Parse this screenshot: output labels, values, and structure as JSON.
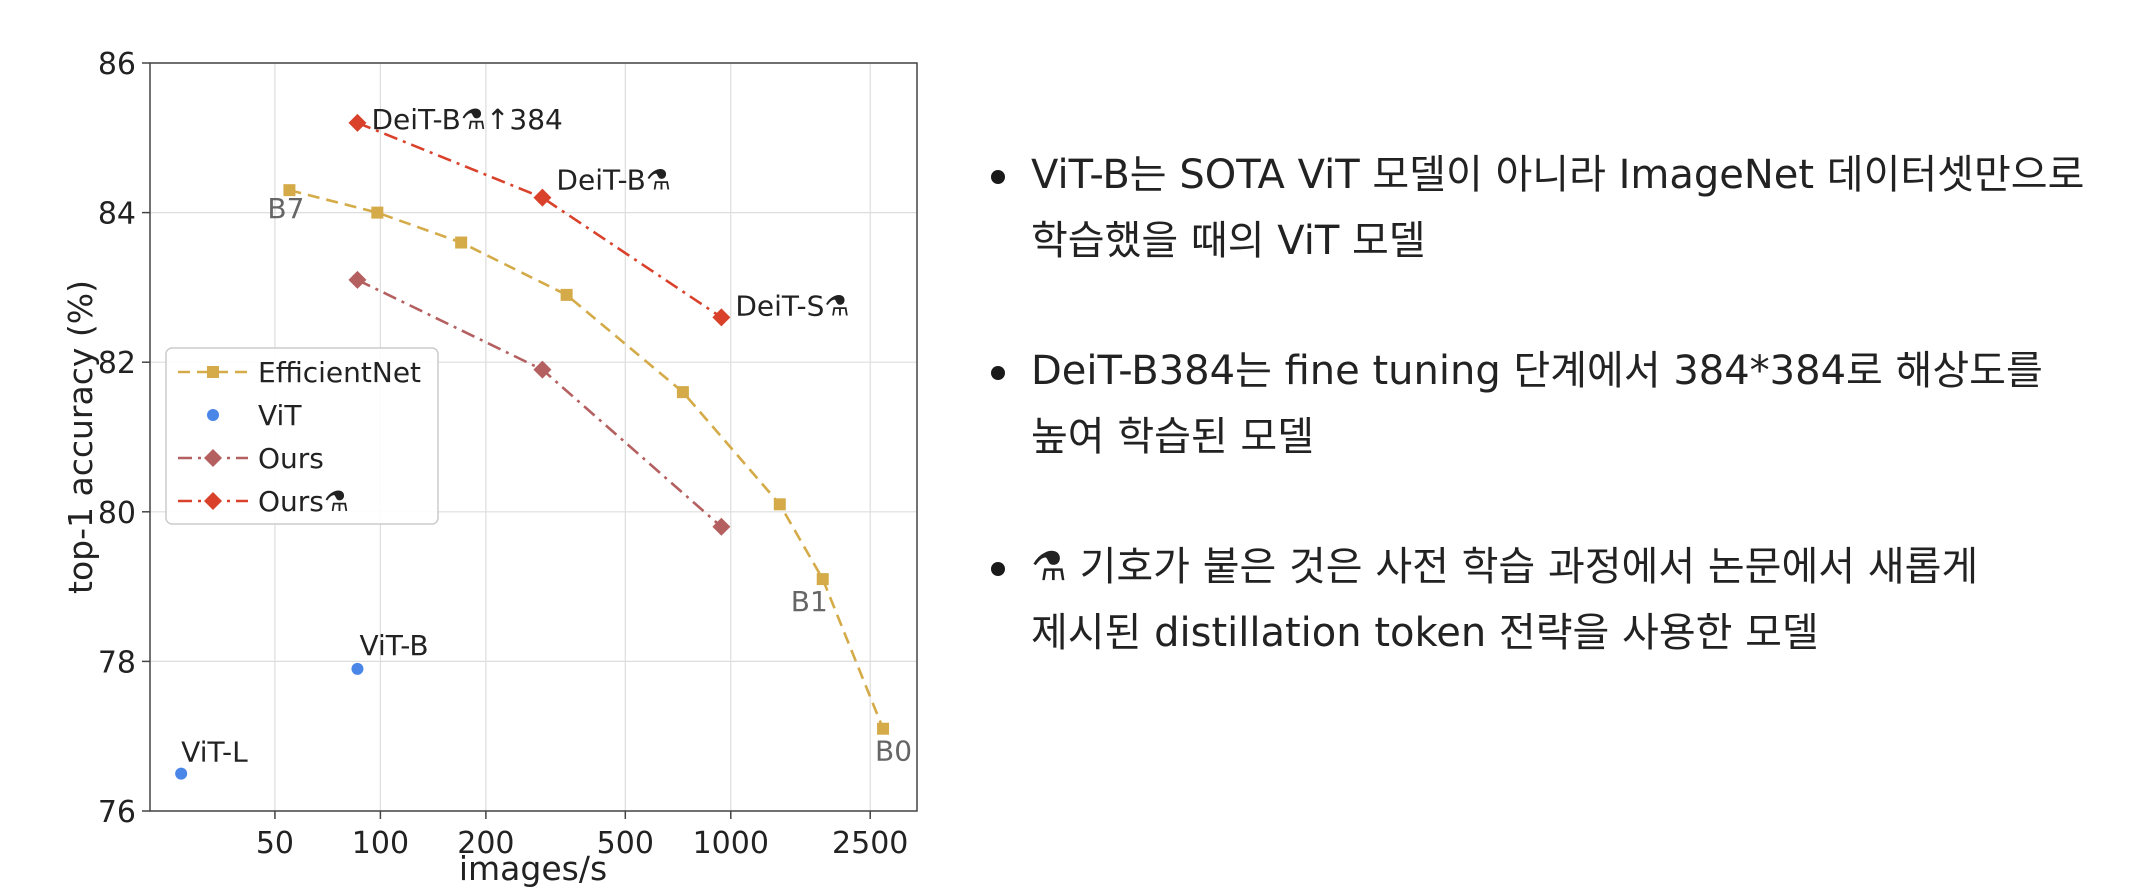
{
  "chart_data": {
    "type": "line",
    "title": "",
    "xlabel": "images/s",
    "ylabel": "top-1 accuracy (%)",
    "xscale": "log",
    "xlim": [
      22,
      3400
    ],
    "ylim": [
      76,
      86
    ],
    "xticks": [
      50,
      100,
      200,
      500,
      1000,
      2500
    ],
    "yticks": [
      76,
      78,
      80,
      82,
      84,
      86
    ],
    "grid": true,
    "legend_position": "center-left",
    "series": [
      {
        "name": "EfficientNet",
        "color": "#d4ab48",
        "marker": "square",
        "line_style": "dashed",
        "points": [
          {
            "x": 55,
            "y": 84.3,
            "label": "B7"
          },
          {
            "x": 98,
            "y": 84.0
          },
          {
            "x": 170,
            "y": 83.6
          },
          {
            "x": 340,
            "y": 82.9
          },
          {
            "x": 730,
            "y": 81.6
          },
          {
            "x": 1380,
            "y": 80.1
          },
          {
            "x": 1830,
            "y": 79.1,
            "label": "B1"
          },
          {
            "x": 2720,
            "y": 77.1,
            "label": "B0"
          }
        ]
      },
      {
        "name": "ViT",
        "color": "#4a86e8",
        "marker": "circle",
        "line_style": "none",
        "points": [
          {
            "x": 86,
            "y": 77.9,
            "label": "ViT-B"
          },
          {
            "x": 27,
            "y": 76.5,
            "label": "ViT-L"
          }
        ]
      },
      {
        "name": "Ours",
        "color": "#b56060",
        "marker": "diamond",
        "line_style": "dashdot",
        "points": [
          {
            "x": 86,
            "y": 83.1
          },
          {
            "x": 290,
            "y": 81.9
          },
          {
            "x": 940,
            "y": 79.8
          }
        ]
      },
      {
        "name": "Ours⚗",
        "color": "#d9412b",
        "marker": "diamond",
        "line_style": "dashdot",
        "points": [
          {
            "x": 86,
            "y": 85.2,
            "label": "DeiT-B⚗↑384"
          },
          {
            "x": 290,
            "y": 84.2,
            "label": "DeiT-B⚗"
          },
          {
            "x": 940,
            "y": 82.6,
            "label": "DeiT-S⚗"
          }
        ]
      }
    ]
  },
  "notes": [
    {
      "lines": [
        "ViT-B는 SOTA ViT 모델이 아니라 ImageNet 데이터셋만으로",
        "학습했을 때의 ViT 모델"
      ]
    },
    {
      "lines": [
        "DeiT-B384는 fine tuning 단계에서 384*384로 해상도를",
        "높여 학습된 모델"
      ]
    },
    {
      "lines": [
        "⚗ 기호가 붙은 것은 사전 학습 과정에서 논문에서 새롭게",
        "제시된 distillation token 전략을 사용한 모델"
      ]
    }
  ]
}
